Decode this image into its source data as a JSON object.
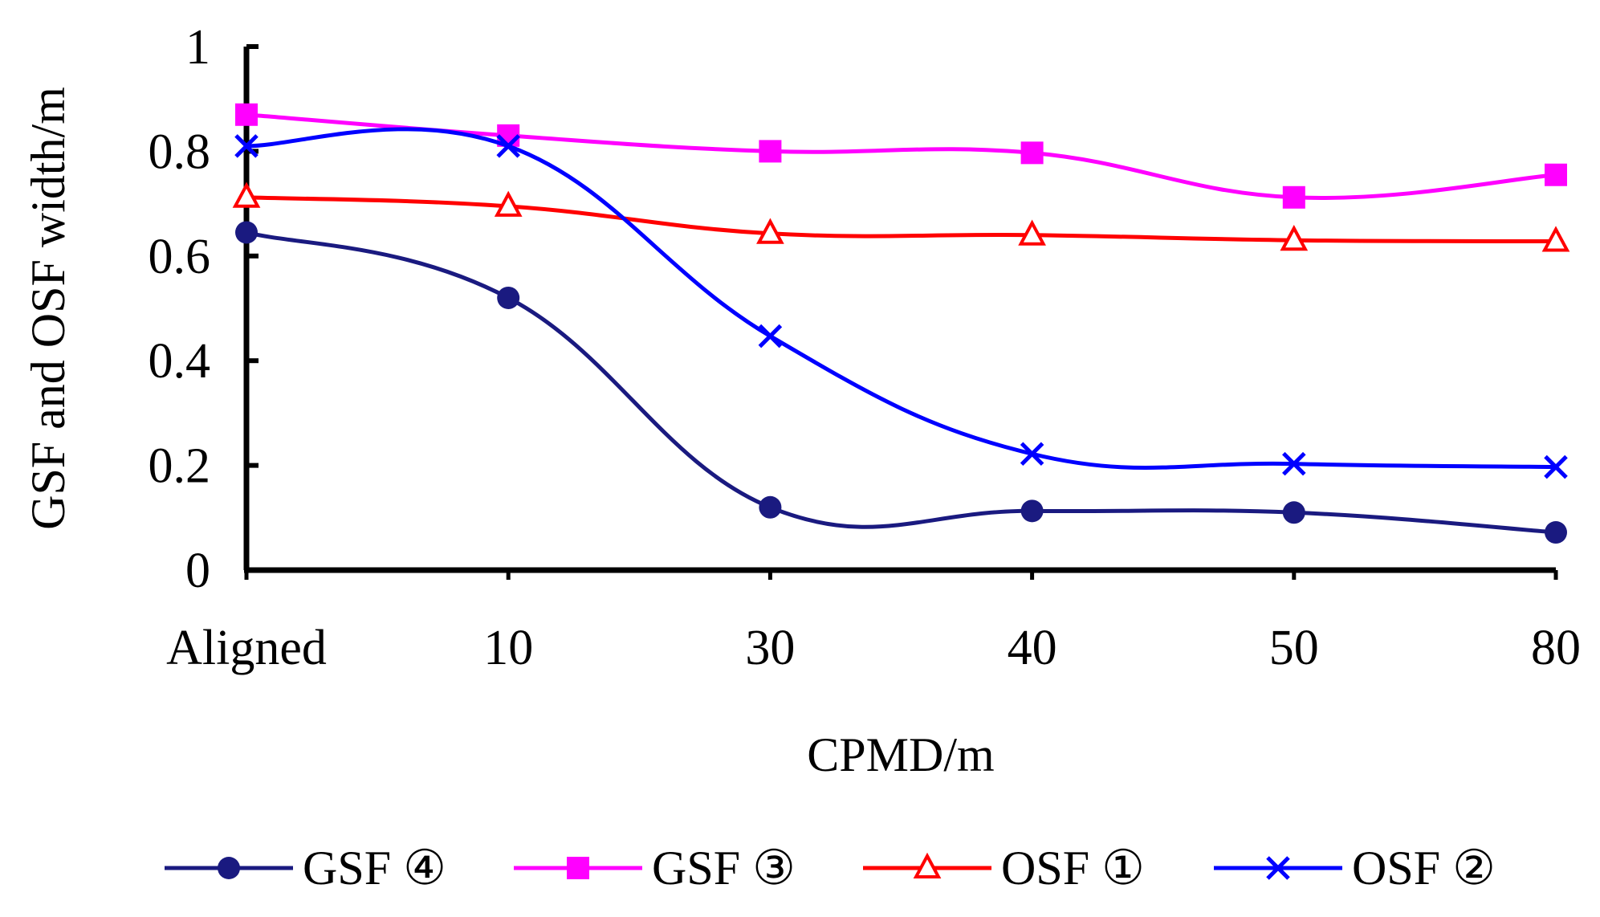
{
  "chart_data": {
    "type": "line",
    "title": "",
    "xlabel": "CPMD/m",
    "ylabel": "GSF and OSF width/m",
    "categories": [
      "Aligned",
      "10",
      "30",
      "40",
      "50",
      "80"
    ],
    "ylim": [
      0,
      1
    ],
    "yticks": [
      0,
      0.2,
      0.4,
      0.6,
      0.8,
      1
    ],
    "ytick_labels": [
      "0",
      "0.2",
      "0.4",
      "0.6",
      "0.8",
      "1"
    ],
    "grid": false,
    "legend_position": "bottom",
    "smooth": true,
    "series": [
      {
        "name": "GSF ④",
        "color": "#1a1a80",
        "marker": "circle",
        "values": [
          0.645,
          0.52,
          0.12,
          0.113,
          0.11,
          0.072
        ]
      },
      {
        "name": "GSF ③",
        "color": "#ff00ff",
        "marker": "square",
        "values": [
          0.87,
          0.83,
          0.8,
          0.797,
          0.712,
          0.755
        ]
      },
      {
        "name": "OSF ①",
        "color": "#ff0000",
        "marker": "triangle",
        "values": [
          0.712,
          0.695,
          0.643,
          0.64,
          0.63,
          0.628
        ]
      },
      {
        "name": "OSF ②",
        "color": "#0000ff",
        "marker": "x",
        "values": [
          0.81,
          0.81,
          0.447,
          0.222,
          0.203,
          0.197
        ]
      }
    ]
  }
}
